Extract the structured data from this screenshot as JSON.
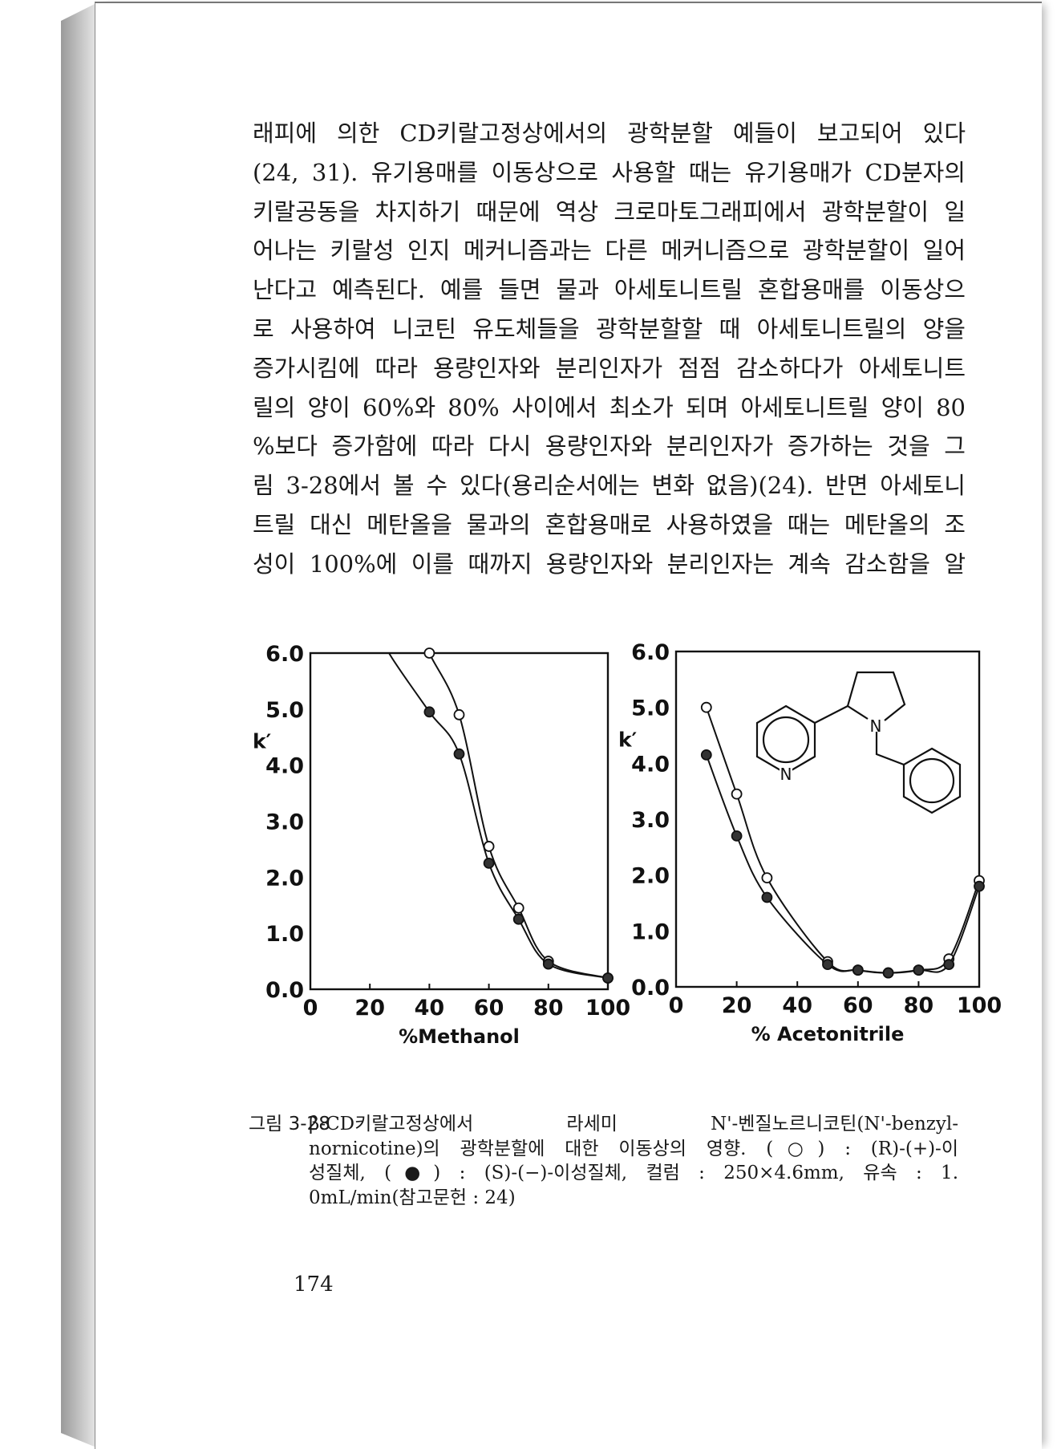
{
  "body_lines": [
    "래피에 의한 CD키랄고정상에서의 광학분할 예들이 보고되어 있다",
    "(24, 31). 유기용매를 이동상으로 사용할 때는 유기용매가 CD분자의",
    "키랄공동을 차지하기 때문에 역상 크로마토그래피에서 광학분할이 일",
    "어나는 키랄성 인지 메커니즘과는 다른 메커니즘으로 광학분할이 일어",
    "난다고 예측된다. 예를 들면 물과 아세토니트릴 혼합용매를 이동상으",
    "로 사용하여 니코틴 유도체들을 광학분할할 때 아세토니트릴의 양을",
    "증가시킴에 따라 용량인자와 분리인자가 점점 감소하다가 아세토니트",
    "릴의 양이 60%와 80% 사이에서 최소가 되며 아세토니트릴 양이 80",
    "%보다 증가함에 따라 다시 용량인자와 분리인자가 증가하는 것을 그",
    "림 3-28에서 볼 수 있다(용리순서에는 변화 없음)(24). 반면 아세토니",
    "트릴 대신 메탄올을 물과의 혼합용매로 사용하였을 때는 메탄올의 조",
    "성이 100%에 이를 때까지 용량인자와 분리인자는 계속 감소함을 알"
  ],
  "chart_data": [
    {
      "type": "line",
      "xlabel": "%Methanol",
      "ylabel": "k′",
      "xlim": [
        0,
        100
      ],
      "ylim": [
        0.0,
        6.0
      ],
      "x_ticks": [
        "0",
        "20",
        "40",
        "60",
        "80",
        "100"
      ],
      "y_ticks": [
        "0.0",
        "1.0",
        "2.0",
        "3.0",
        "4.0",
        "5.0",
        "6.0"
      ],
      "grid": false,
      "series": [
        {
          "marker": "open-circle",
          "x": [
            40,
            50,
            60,
            70,
            80,
            100
          ],
          "y": [
            6.0,
            4.9,
            2.55,
            1.45,
            0.5,
            0.2
          ]
        },
        {
          "marker": "filled-circle",
          "x": [
            40,
            50,
            60,
            70,
            80,
            100
          ],
          "y": [
            4.95,
            4.2,
            2.25,
            1.25,
            0.45,
            0.2
          ]
        }
      ]
    },
    {
      "type": "line",
      "xlabel": "% Acetonitrile",
      "ylabel": "k′",
      "xlim": [
        0,
        100
      ],
      "ylim": [
        0.0,
        6.0
      ],
      "x_ticks": [
        "0",
        "20",
        "40",
        "60",
        "80",
        "100"
      ],
      "y_ticks": [
        "0.0",
        "1.0",
        "2.0",
        "3.0",
        "4.0",
        "5.0",
        "6.0"
      ],
      "grid": false,
      "series": [
        {
          "marker": "open-circle",
          "x": [
            10,
            20,
            30,
            50,
            60,
            70,
            80,
            90,
            100
          ],
          "y": [
            5.0,
            3.45,
            1.95,
            0.45,
            0.3,
            0.25,
            0.3,
            0.5,
            1.9
          ]
        },
        {
          "marker": "filled-circle",
          "x": [
            10,
            20,
            30,
            50,
            60,
            70,
            80,
            90,
            100
          ],
          "y": [
            4.15,
            2.7,
            1.6,
            0.4,
            0.3,
            0.25,
            0.3,
            0.4,
            1.8
          ]
        }
      ],
      "inset": "N'-benzylnornicotine structure",
      "structure_labels": [
        "N",
        "N"
      ]
    }
  ],
  "caption": {
    "label": "그림 3-28",
    "lines": [
      "β-CD키랄고정상에서 라세미 N'-벤질노르니코틴(N'-benzyl-",
      "nornicotine)의 광학분할에 대한 이동상의 영향. (○) : (R)-(+)-이",
      "성질체, (●) : (S)-(−)-이성질체, 컬럼 : 250×4.6mm, 유속 : 1.",
      "0mL/min(참고문헌 : 24)"
    ]
  },
  "page_number": "174"
}
